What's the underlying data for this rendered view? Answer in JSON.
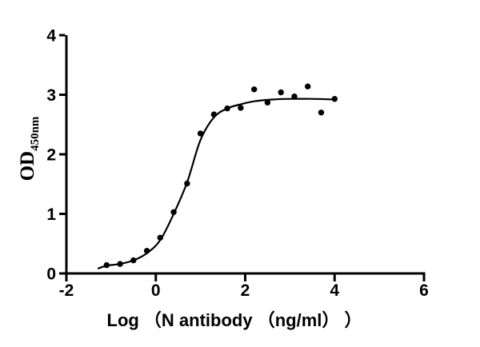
{
  "figure": {
    "background": "#ffffff",
    "ink_color": "#000000"
  },
  "chart_data": {
    "type": "scatter",
    "title": "",
    "xlabel": "Log （N antibody （ng/ml） ）",
    "ylabel_main": "OD",
    "ylabel_sub": "450nm",
    "xlim": [
      -2,
      6
    ],
    "ylim": [
      0,
      4
    ],
    "x_ticks": [
      -2,
      0,
      2,
      4,
      6
    ],
    "x_tick_labels": [
      "-2",
      "0",
      "2",
      "4",
      "6"
    ],
    "y_ticks": [
      0,
      1,
      2,
      3,
      4
    ],
    "y_tick_labels": [
      "0",
      "1",
      "2",
      "3",
      "4"
    ],
    "grid": false,
    "legend": "none",
    "marker_color": "#000000",
    "curve_color": "#000000",
    "series": [
      {
        "name": "OD450 data points",
        "kind": "scatter",
        "marker": "filled-circle",
        "x": [
          -1.1,
          -0.8,
          -0.5,
          -0.2,
          0.1,
          0.4,
          0.7,
          1.0,
          1.3,
          1.6,
          1.9,
          2.2,
          2.5,
          2.8,
          3.1,
          3.4,
          3.7,
          4.0
        ],
        "y": [
          0.14,
          0.16,
          0.22,
          0.38,
          0.6,
          1.03,
          1.51,
          2.35,
          2.67,
          2.77,
          2.78,
          3.09,
          2.87,
          3.04,
          2.97,
          3.14,
          2.7,
          2.93
        ]
      },
      {
        "name": "fitted sigmoidal binding curve",
        "kind": "line",
        "x": [
          -1.3,
          -1.1,
          -0.8,
          -0.5,
          -0.2,
          0.1,
          0.4,
          0.7,
          1.0,
          1.3,
          1.6,
          1.9,
          2.2,
          2.6,
          3.0,
          3.5,
          4.0
        ],
        "y": [
          0.08,
          0.13,
          0.16,
          0.22,
          0.34,
          0.56,
          1.0,
          1.53,
          2.24,
          2.62,
          2.77,
          2.84,
          2.89,
          2.92,
          2.93,
          2.93,
          2.92
        ]
      }
    ]
  }
}
